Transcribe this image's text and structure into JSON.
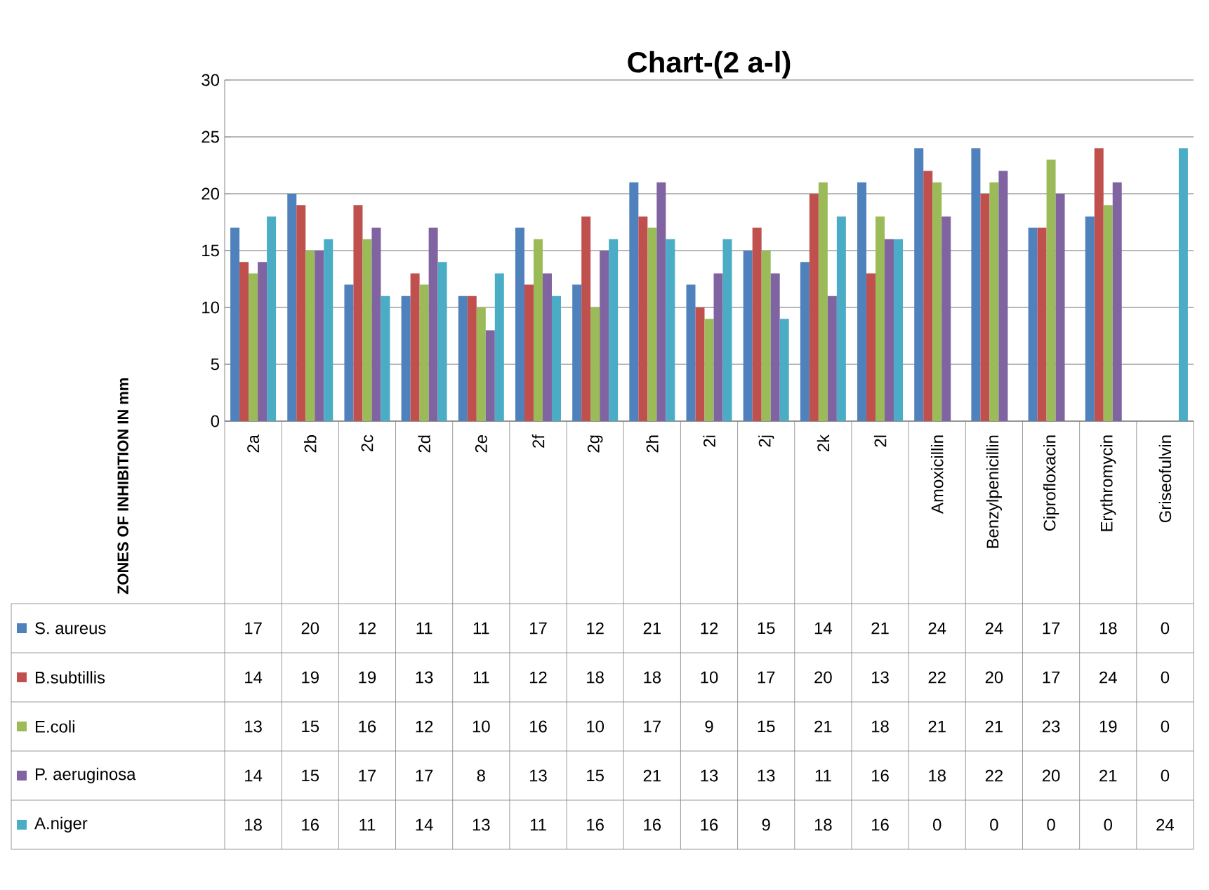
{
  "chart_data": {
    "type": "bar",
    "title": "Chart-(2 a-l)",
    "ylabel": "ZONES OF INHIBITION IN mm",
    "categories": [
      "2a",
      "2b",
      "2c",
      "2d",
      "2e",
      "2f",
      "2g",
      "2h",
      "2i",
      "2j",
      "2k",
      "2l",
      "Amoxicillin",
      "Benzylpenicillin",
      "Ciprofloxacin",
      "Erythromycin",
      "Griseofulvin"
    ],
    "series": [
      {
        "name": "S. aureus",
        "color": "#4f81bd",
        "values": [
          17,
          20,
          12,
          11,
          11,
          17,
          12,
          21,
          12,
          15,
          14,
          21,
          24,
          24,
          17,
          18,
          0
        ]
      },
      {
        "name": "B.subtillis",
        "color": "#c0504d",
        "values": [
          14,
          19,
          19,
          13,
          11,
          12,
          18,
          18,
          10,
          17,
          20,
          13,
          22,
          20,
          17,
          24,
          0
        ]
      },
      {
        "name": "E.coli",
        "color": "#9bbb59",
        "values": [
          13,
          15,
          16,
          12,
          10,
          16,
          10,
          17,
          9,
          15,
          21,
          18,
          21,
          21,
          23,
          19,
          0
        ]
      },
      {
        "name": "P. aeruginosa",
        "color": "#8064a2",
        "values": [
          14,
          15,
          17,
          17,
          8,
          13,
          15,
          21,
          13,
          13,
          11,
          16,
          18,
          22,
          20,
          21,
          0
        ]
      },
      {
        "name": "A.niger",
        "color": "#4bacc6",
        "values": [
          18,
          16,
          11,
          14,
          13,
          11,
          16,
          16,
          16,
          9,
          18,
          16,
          0,
          0,
          0,
          0,
          24
        ]
      }
    ],
    "ylim": [
      0,
      30
    ],
    "yticks": [
      0,
      5,
      10,
      15,
      20,
      25,
      30
    ],
    "grid": "y",
    "legend": "bottom left",
    "data_labels": true
  }
}
